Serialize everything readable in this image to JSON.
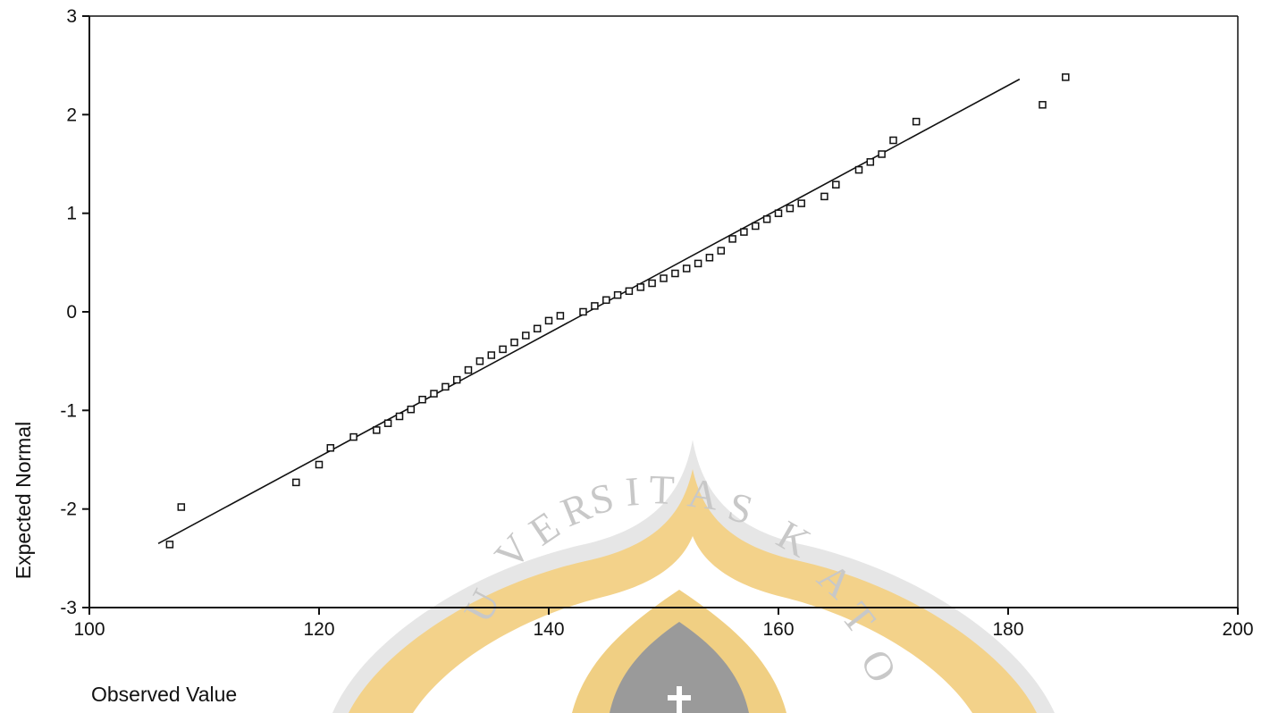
{
  "chart_data": {
    "type": "scatter",
    "title": "",
    "xlabel": "Observed Value",
    "ylabel": "Expected Normal",
    "xlim": [
      100,
      200
    ],
    "ylim": [
      -3,
      3
    ],
    "x_ticks": [
      "100",
      "120",
      "140",
      "160",
      "180",
      "200"
    ],
    "y_ticks": [
      "3",
      "2",
      "1",
      "0",
      "-1",
      "-2",
      "-3"
    ],
    "grid": false,
    "legend": "none",
    "marker": "open-square",
    "reference_line": {
      "x": [
        106,
        181
      ],
      "y": [
        -2.35,
        2.36
      ]
    },
    "points": [
      [
        107,
        -2.36
      ],
      [
        108,
        -1.98
      ],
      [
        118,
        -1.73
      ],
      [
        120,
        -1.55
      ],
      [
        121,
        -1.38
      ],
      [
        123,
        -1.27
      ],
      [
        125,
        -1.2
      ],
      [
        126,
        -1.13
      ],
      [
        127,
        -1.06
      ],
      [
        128,
        -0.99
      ],
      [
        129,
        -0.89
      ],
      [
        130,
        -0.83
      ],
      [
        131,
        -0.76
      ],
      [
        132,
        -0.69
      ],
      [
        133,
        -0.59
      ],
      [
        134,
        -0.5
      ],
      [
        135,
        -0.44
      ],
      [
        136,
        -0.38
      ],
      [
        137,
        -0.31
      ],
      [
        138,
        -0.24
      ],
      [
        139,
        -0.17
      ],
      [
        140,
        -0.09
      ],
      [
        141,
        -0.04
      ],
      [
        143,
        0.0
      ],
      [
        144,
        0.06
      ],
      [
        145,
        0.12
      ],
      [
        146,
        0.17
      ],
      [
        147,
        0.21
      ],
      [
        148,
        0.25
      ],
      [
        149,
        0.29
      ],
      [
        150,
        0.34
      ],
      [
        151,
        0.39
      ],
      [
        152,
        0.44
      ],
      [
        153,
        0.49
      ],
      [
        154,
        0.55
      ],
      [
        155,
        0.62
      ],
      [
        156,
        0.74
      ],
      [
        157,
        0.81
      ],
      [
        158,
        0.87
      ],
      [
        159,
        0.94
      ],
      [
        160,
        1.0
      ],
      [
        161,
        1.05
      ],
      [
        162,
        1.1
      ],
      [
        164,
        1.17
      ],
      [
        165,
        1.29
      ],
      [
        167,
        1.44
      ],
      [
        168,
        1.52
      ],
      [
        169,
        1.6
      ],
      [
        170,
        1.74
      ],
      [
        172,
        1.93
      ],
      [
        183,
        2.1
      ],
      [
        185,
        2.38
      ]
    ]
  },
  "colors": {
    "ink": "#111111",
    "watermark_gold": "#f3d28a",
    "watermark_gold_dark": "#e2b653",
    "watermark_gray": "#c9c9c9",
    "watermark_text": "#c8c8c8"
  },
  "watermark": {
    "text": "UNIVERSITAS KATOLIK"
  }
}
